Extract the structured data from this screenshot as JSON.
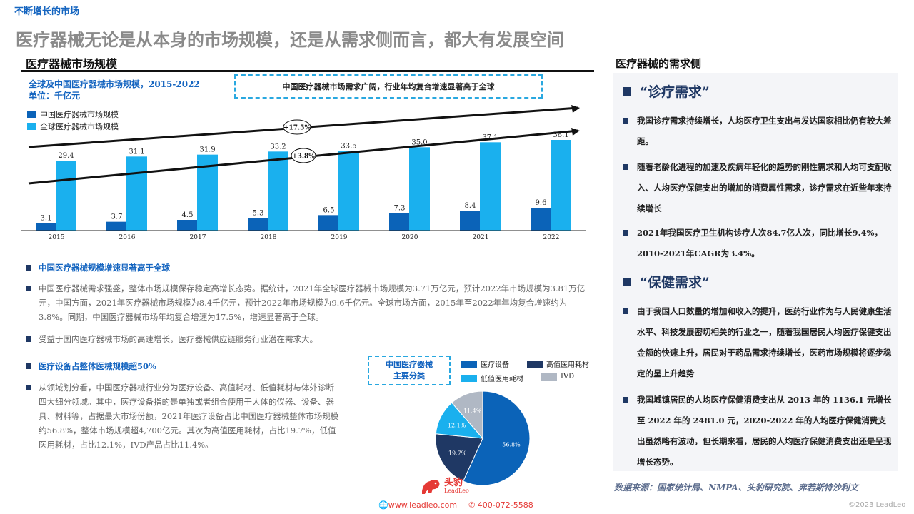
{
  "page": {
    "section_tag": "不断增长的市场",
    "title": "医疗器械无论是从本身的市场规模，还是从需求侧而言，都大有发展空间"
  },
  "left": {
    "header": "医疗器械市场规模",
    "chart_title_line1": "全球及中国医疗器械市场规模，2015-2022",
    "chart_title_line2": "单位：千亿元",
    "callout": "中国医疗器械市场需求广阔，行业年均复合增速显著高于全球",
    "legend": [
      "中国医疗器械市场规模",
      "全球医疗器械市场规模"
    ],
    "growth_labels": [
      "+17.5%",
      "+3.8%"
    ],
    "bullets": [
      {
        "text": "中国医疗器械规模增速显著高于全球",
        "heading": true
      },
      {
        "text": "中国医疗器械需求强盛，整体市场规模保存稳定高增长态势。据统计，2021年全球医疗器械市场规模为3.71万亿元，预计2022年市场规模为3.81万亿元，中国方面，2021年医疗器械市场规模为8.4千亿元，预计2022年市场规模为9.6千亿元。全球市场方面，2015年至2022年年均复合增速约为3.8%。同期，中国医疗器械市场年均复合增速为17.5%，增速显著高于全球。",
        "heading": false
      },
      {
        "text": "受益于国内医疗器械市场的高速增长，医疗器械供应链服务行业潜在需求大。",
        "heading": false
      },
      {
        "text": "医疗设备占整体医械规模超50%",
        "heading": true
      },
      {
        "text": "从领域划分看，中国医疗器械行业分为医疗设备、高值耗材、低值耗材与体外诊断四大细分领域。其中，医疗设备指的是单独或者组合使用于人体的仪器、设备、器具、材料等，占据最大市场份额，2021年医疗设备占比中国医疗器械整体市场规模约56.8%，整体市场规模超4,700亿元。其次为高值医用耗材，占比19.7%，低值医用耗材，占比12.1%，IVD产品占比11.4%。",
        "heading": false
      }
    ],
    "pie_box_line1": "中国医疗器械",
    "pie_box_line2": "主要分类"
  },
  "chart_data": [
    {
      "type": "bar",
      "title": "全球及中国医疗器械市场规模，2015-2022",
      "ylabel": "",
      "categories": [
        "2015",
        "2016",
        "2017",
        "2018",
        "2019",
        "2020",
        "2021",
        "2022"
      ],
      "series": [
        {
          "name": "中国医疗器械市场规模",
          "values": [
            3.1,
            3.7,
            4.5,
            5.3,
            6.5,
            7.3,
            8.4,
            9.6
          ],
          "color": "#0b63b8"
        },
        {
          "name": "全球医疗器械市场规模",
          "values": [
            29.4,
            31.1,
            31.9,
            33.2,
            33.5,
            35.0,
            37.1,
            38.1
          ],
          "color": "#1ab0ee"
        }
      ],
      "ylim": [
        0,
        42
      ],
      "legend": "top-left",
      "grid": false
    },
    {
      "type": "pie",
      "labels": [
        "医疗设备",
        "高值医用耗材",
        "低值医用耗材",
        "IVD"
      ],
      "values": [
        56.8,
        19.7,
        12.1,
        11.4
      ],
      "display": [
        "56.8%",
        "19.7%",
        "12.1%",
        "11.4%"
      ],
      "colors": [
        "#0b63b8",
        "#1f3864",
        "#1ab0ee",
        "#b0b8c4"
      ],
      "legend": "top-right"
    }
  ],
  "right": {
    "header": "医疗器械的需求侧",
    "section1_title": "“诊疗需求”",
    "section1_bullets": [
      "我国诊疗需求持续增长，人均医疗卫生支出与发达国家相比仍有较大差距。",
      "随着老龄化进程的加速及疾病年轻化的趋势的刚性需求和人均可支配收入、人均医疗保健支出的增加的消费属性需求，诊疗需求在近些年来持续增长",
      "2021年我国医疗卫生机构诊疗人次84.7亿人次，同比增长9.4%，2010-2021年CAGR为3.4%。"
    ],
    "section2_title": "“保健需求”",
    "section2_bullets": [
      "由于我国人口数量的增加和收入的提升，医药行业作为与人民健康生活水平、科技发展密切相关的行业之一，随着我国居民人均医疗保健支出金额的快速上升，居民对于药品需求持续增长，医药市场规模将逐步稳定的呈上升趋势",
      "我国城镇居民的人均医疗保健消费支出从 2013 年的 1136.1 元增长至 2022 年的 2481.0 元，2020-2022 年的人均医疗保健消费支出虽然略有波动，但长期来看，居民的人均医疗保健消费支出还是呈现增长态势。"
    ]
  },
  "footer": {
    "source": "数据来源：国家统计局、NMPA、头豹研究院、弗若斯特沙利文",
    "logo_cn": "头豹",
    "logo_en": "LeadLeo",
    "website": "www.leadleo.com",
    "phone": "400-072-5588",
    "copyright": "©2023 LeadLeo"
  }
}
